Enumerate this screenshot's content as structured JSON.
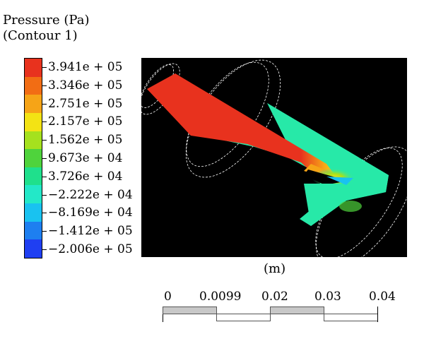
{
  "legend": {
    "title_line1": "Pressure (Pa)",
    "title_line2": "(Contour 1)",
    "ticks": [
      "3.941e + 05",
      "3.346e + 05",
      "2.751e + 05",
      "2.157e + 05",
      "1.562e + 05",
      "9.673e + 04",
      "3.726e + 04",
      "−2.222e + 04",
      "−8.169e + 04",
      "−1.412e + 05",
      "−2.006e + 05"
    ],
    "band_colors": [
      "#e8321e",
      "#f26d14",
      "#f6a417",
      "#f3e314",
      "#a5e11e",
      "#4fd33c",
      "#1fe08c",
      "#23e8c8",
      "#19c2f0",
      "#1e7ff0",
      "#1f3ff2"
    ]
  },
  "model_colors": {
    "background": "#000000",
    "high_pressure": "#e8321e",
    "mid_pressure": "#27e9a8",
    "transition": "#f6a417",
    "guide_lines": "#ffffff"
  },
  "scale": {
    "unit": "(m)",
    "ticks": [
      "0",
      "0.0099",
      "0.02",
      "0.03",
      "0.04"
    ]
  }
}
